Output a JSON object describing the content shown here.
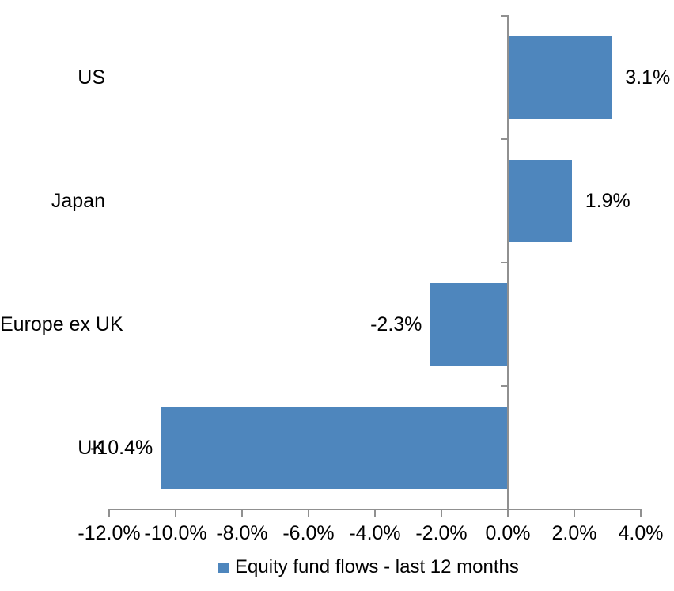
{
  "chart_data": {
    "type": "bar",
    "orientation": "horizontal",
    "title": "",
    "xlabel": "",
    "ylabel": "",
    "categories": [
      "US",
      "Japan",
      "Europe ex UK",
      "UK"
    ],
    "series": [
      {
        "name": "Equity fund flows - last 12 months",
        "values": [
          3.1,
          1.9,
          -2.3,
          -10.4
        ],
        "data_labels": [
          "3.1%",
          "1.9%",
          "-2.3%",
          "-10.4%"
        ]
      }
    ],
    "xlim": [
      -12,
      4
    ],
    "x_ticks": [
      -12,
      -10,
      -8,
      -6,
      -4,
      -2,
      0,
      2,
      4
    ],
    "x_tick_labels": [
      "-12.0%",
      "-10.0%",
      "-8.0%",
      "-6.0%",
      "-4.0%",
      "-2.0%",
      "0.0%",
      "2.0%",
      "4.0%"
    ],
    "grid": false,
    "legend_position": "bottom",
    "data_label_position": "outside-end",
    "colors": {
      "bar": "#4E86BD",
      "axis": "#909090",
      "text": "#000000",
      "background": "#FFFFFF"
    }
  },
  "legend": {
    "swatch_icon": "series-color-square",
    "label": "Equity fund flows - last 12 months"
  }
}
